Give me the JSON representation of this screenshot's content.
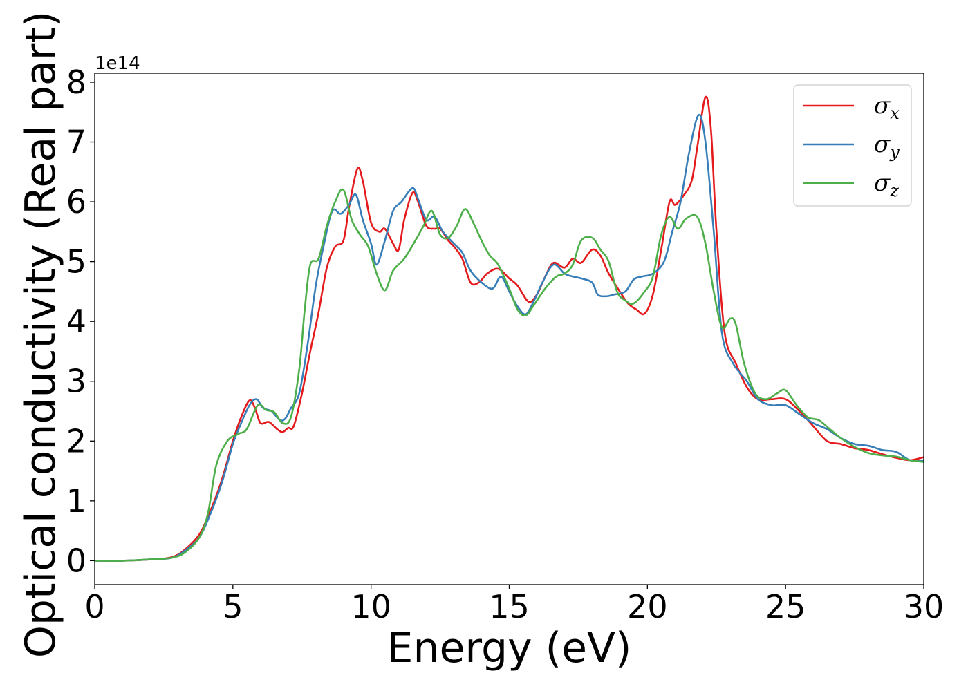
{
  "chart_data": {
    "type": "line",
    "xlabel": "Energy (eV)",
    "ylabel": "Optical conductivity (Real part)",
    "y_offset_label": "1e14",
    "xlim": [
      0,
      30
    ],
    "ylim": [
      -0.4,
      8.15
    ],
    "x_ticks": [
      0,
      5,
      10,
      15,
      20,
      25,
      30
    ],
    "y_ticks": [
      0,
      1,
      2,
      3,
      4,
      5,
      6,
      7,
      8
    ],
    "grid": false,
    "legend_position": "top-right",
    "series": [
      {
        "name": "σx",
        "legend_symbol": "σ",
        "legend_subscript": "x",
        "color": "#e41a1c",
        "points": [
          [
            0,
            0
          ],
          [
            1,
            0
          ],
          [
            2,
            0.02
          ],
          [
            2.8,
            0.06
          ],
          [
            3.3,
            0.2
          ],
          [
            3.8,
            0.45
          ],
          [
            4.2,
            0.85
          ],
          [
            4.6,
            1.35
          ],
          [
            5,
            2.0
          ],
          [
            5.3,
            2.4
          ],
          [
            5.6,
            2.68
          ],
          [
            5.8,
            2.55
          ],
          [
            6.0,
            2.3
          ],
          [
            6.3,
            2.32
          ],
          [
            6.6,
            2.2
          ],
          [
            6.8,
            2.15
          ],
          [
            7.0,
            2.22
          ],
          [
            7.2,
            2.25
          ],
          [
            7.5,
            2.8
          ],
          [
            7.8,
            3.5
          ],
          [
            8.1,
            4.15
          ],
          [
            8.4,
            4.9
          ],
          [
            8.7,
            5.25
          ],
          [
            9.0,
            5.35
          ],
          [
            9.2,
            5.9
          ],
          [
            9.5,
            6.55
          ],
          [
            9.7,
            6.35
          ],
          [
            10.0,
            5.65
          ],
          [
            10.3,
            5.5
          ],
          [
            10.5,
            5.55
          ],
          [
            10.8,
            5.3
          ],
          [
            11.0,
            5.2
          ],
          [
            11.2,
            5.7
          ],
          [
            11.5,
            6.15
          ],
          [
            11.7,
            6.0
          ],
          [
            12.0,
            5.6
          ],
          [
            12.3,
            5.55
          ],
          [
            12.5,
            5.55
          ],
          [
            12.8,
            5.35
          ],
          [
            13.0,
            5.25
          ],
          [
            13.3,
            5.05
          ],
          [
            13.6,
            4.65
          ],
          [
            13.9,
            4.65
          ],
          [
            14.2,
            4.8
          ],
          [
            14.6,
            4.88
          ],
          [
            15.0,
            4.72
          ],
          [
            15.3,
            4.6
          ],
          [
            15.7,
            4.33
          ],
          [
            16.0,
            4.45
          ],
          [
            16.3,
            4.75
          ],
          [
            16.6,
            4.98
          ],
          [
            17.0,
            4.9
          ],
          [
            17.3,
            5.05
          ],
          [
            17.6,
            4.98
          ],
          [
            18.0,
            5.2
          ],
          [
            18.3,
            5.1
          ],
          [
            18.6,
            4.8
          ],
          [
            19.0,
            4.5
          ],
          [
            19.3,
            4.3
          ],
          [
            19.6,
            4.2
          ],
          [
            19.9,
            4.13
          ],
          [
            20.2,
            4.45
          ],
          [
            20.5,
            5.2
          ],
          [
            20.8,
            6.0
          ],
          [
            21.0,
            5.95
          ],
          [
            21.3,
            6.1
          ],
          [
            21.6,
            6.35
          ],
          [
            21.8,
            6.9
          ],
          [
            22.1,
            7.75
          ],
          [
            22.3,
            7.2
          ],
          [
            22.5,
            5.5
          ],
          [
            22.8,
            3.8
          ],
          [
            23.2,
            3.3
          ],
          [
            23.6,
            2.9
          ],
          [
            24.0,
            2.7
          ],
          [
            24.5,
            2.7
          ],
          [
            25.0,
            2.7
          ],
          [
            25.5,
            2.5
          ],
          [
            26.0,
            2.25
          ],
          [
            26.5,
            2.0
          ],
          [
            27.0,
            1.95
          ],
          [
            27.5,
            1.88
          ],
          [
            28.0,
            1.85
          ],
          [
            28.5,
            1.78
          ],
          [
            29.0,
            1.72
          ],
          [
            29.5,
            1.68
          ],
          [
            30.0,
            1.73
          ]
        ]
      },
      {
        "name": "σy",
        "legend_symbol": "σ",
        "legend_subscript": "y",
        "color": "#377eb8",
        "points": [
          [
            0,
            0
          ],
          [
            1,
            0
          ],
          [
            2,
            0.02
          ],
          [
            2.8,
            0.05
          ],
          [
            3.3,
            0.18
          ],
          [
            3.8,
            0.4
          ],
          [
            4.2,
            0.8
          ],
          [
            4.6,
            1.3
          ],
          [
            5,
            1.95
          ],
          [
            5.3,
            2.3
          ],
          [
            5.6,
            2.6
          ],
          [
            5.85,
            2.7
          ],
          [
            6.1,
            2.55
          ],
          [
            6.4,
            2.5
          ],
          [
            6.7,
            2.35
          ],
          [
            6.9,
            2.38
          ],
          [
            7.1,
            2.55
          ],
          [
            7.4,
            2.8
          ],
          [
            7.7,
            3.6
          ],
          [
            8.0,
            4.6
          ],
          [
            8.3,
            5.3
          ],
          [
            8.6,
            5.85
          ],
          [
            8.9,
            5.8
          ],
          [
            9.2,
            5.95
          ],
          [
            9.45,
            6.12
          ],
          [
            9.7,
            5.7
          ],
          [
            10.0,
            5.3
          ],
          [
            10.2,
            4.95
          ],
          [
            10.5,
            5.35
          ],
          [
            10.8,
            5.85
          ],
          [
            11.1,
            6.0
          ],
          [
            11.5,
            6.23
          ],
          [
            11.7,
            6.05
          ],
          [
            12.0,
            5.7
          ],
          [
            12.3,
            5.75
          ],
          [
            12.6,
            5.5
          ],
          [
            13.0,
            5.3
          ],
          [
            13.3,
            5.15
          ],
          [
            13.6,
            4.85
          ],
          [
            14.0,
            4.65
          ],
          [
            14.4,
            4.55
          ],
          [
            14.7,
            4.75
          ],
          [
            15.0,
            4.5
          ],
          [
            15.3,
            4.25
          ],
          [
            15.6,
            4.12
          ],
          [
            15.9,
            4.35
          ],
          [
            16.2,
            4.65
          ],
          [
            16.6,
            4.95
          ],
          [
            17.0,
            4.8
          ],
          [
            17.3,
            4.75
          ],
          [
            17.6,
            4.72
          ],
          [
            18.0,
            4.65
          ],
          [
            18.2,
            4.45
          ],
          [
            18.5,
            4.42
          ],
          [
            18.8,
            4.45
          ],
          [
            19.2,
            4.5
          ],
          [
            19.5,
            4.7
          ],
          [
            19.8,
            4.75
          ],
          [
            20.2,
            4.8
          ],
          [
            20.6,
            5.0
          ],
          [
            20.9,
            5.5
          ],
          [
            21.2,
            6.0
          ],
          [
            21.5,
            6.8
          ],
          [
            21.85,
            7.45
          ],
          [
            22.1,
            7.0
          ],
          [
            22.4,
            5.5
          ],
          [
            22.7,
            3.8
          ],
          [
            23.1,
            3.3
          ],
          [
            23.6,
            3.0
          ],
          [
            24.0,
            2.7
          ],
          [
            24.5,
            2.6
          ],
          [
            25.0,
            2.6
          ],
          [
            25.5,
            2.45
          ],
          [
            26.0,
            2.3
          ],
          [
            26.5,
            2.2
          ],
          [
            27.0,
            2.05
          ],
          [
            27.5,
            1.95
          ],
          [
            28.0,
            1.92
          ],
          [
            28.5,
            1.85
          ],
          [
            29.0,
            1.82
          ],
          [
            29.5,
            1.68
          ],
          [
            30.0,
            1.68
          ]
        ]
      },
      {
        "name": "σz",
        "legend_symbol": "σ",
        "legend_subscript": "z",
        "color": "#4daf4a",
        "points": [
          [
            0,
            0
          ],
          [
            1,
            0
          ],
          [
            2,
            0.02
          ],
          [
            2.8,
            0.05
          ],
          [
            3.3,
            0.15
          ],
          [
            3.8,
            0.4
          ],
          [
            4.1,
            0.8
          ],
          [
            4.4,
            1.6
          ],
          [
            4.8,
            2.0
          ],
          [
            5.2,
            2.12
          ],
          [
            5.5,
            2.2
          ],
          [
            5.9,
            2.6
          ],
          [
            6.2,
            2.52
          ],
          [
            6.5,
            2.48
          ],
          [
            6.8,
            2.3
          ],
          [
            7.1,
            2.4
          ],
          [
            7.4,
            3.2
          ],
          [
            7.6,
            4.2
          ],
          [
            7.8,
            4.95
          ],
          [
            8.1,
            5.05
          ],
          [
            8.4,
            5.6
          ],
          [
            8.7,
            6.0
          ],
          [
            9.0,
            6.2
          ],
          [
            9.3,
            5.7
          ],
          [
            9.6,
            5.45
          ],
          [
            9.9,
            5.25
          ],
          [
            10.2,
            4.8
          ],
          [
            10.5,
            4.52
          ],
          [
            10.8,
            4.85
          ],
          [
            11.2,
            5.05
          ],
          [
            11.6,
            5.35
          ],
          [
            11.9,
            5.6
          ],
          [
            12.2,
            5.85
          ],
          [
            12.5,
            5.45
          ],
          [
            12.8,
            5.4
          ],
          [
            13.1,
            5.6
          ],
          [
            13.4,
            5.88
          ],
          [
            13.7,
            5.65
          ],
          [
            14.0,
            5.35
          ],
          [
            14.3,
            5.1
          ],
          [
            14.6,
            4.95
          ],
          [
            15.0,
            4.55
          ],
          [
            15.3,
            4.2
          ],
          [
            15.6,
            4.1
          ],
          [
            15.9,
            4.28
          ],
          [
            16.3,
            4.55
          ],
          [
            16.7,
            4.75
          ],
          [
            17.0,
            4.8
          ],
          [
            17.3,
            4.95
          ],
          [
            17.6,
            5.35
          ],
          [
            18.0,
            5.4
          ],
          [
            18.3,
            5.2
          ],
          [
            18.6,
            5.0
          ],
          [
            18.9,
            4.5
          ],
          [
            19.2,
            4.35
          ],
          [
            19.5,
            4.3
          ],
          [
            19.9,
            4.5
          ],
          [
            20.2,
            4.75
          ],
          [
            20.5,
            5.45
          ],
          [
            20.8,
            5.75
          ],
          [
            21.1,
            5.55
          ],
          [
            21.4,
            5.72
          ],
          [
            21.8,
            5.75
          ],
          [
            22.1,
            5.3
          ],
          [
            22.4,
            4.5
          ],
          [
            22.7,
            3.9
          ],
          [
            23.0,
            4.05
          ],
          [
            23.2,
            3.95
          ],
          [
            23.5,
            3.3
          ],
          [
            23.9,
            2.8
          ],
          [
            24.3,
            2.7
          ],
          [
            24.7,
            2.8
          ],
          [
            25.0,
            2.85
          ],
          [
            25.4,
            2.6
          ],
          [
            25.8,
            2.4
          ],
          [
            26.2,
            2.35
          ],
          [
            26.6,
            2.2
          ],
          [
            27.0,
            2.05
          ],
          [
            27.5,
            1.9
          ],
          [
            28.0,
            1.8
          ],
          [
            28.5,
            1.76
          ],
          [
            29.0,
            1.74
          ],
          [
            29.5,
            1.68
          ],
          [
            30.0,
            1.65
          ]
        ]
      }
    ]
  }
}
